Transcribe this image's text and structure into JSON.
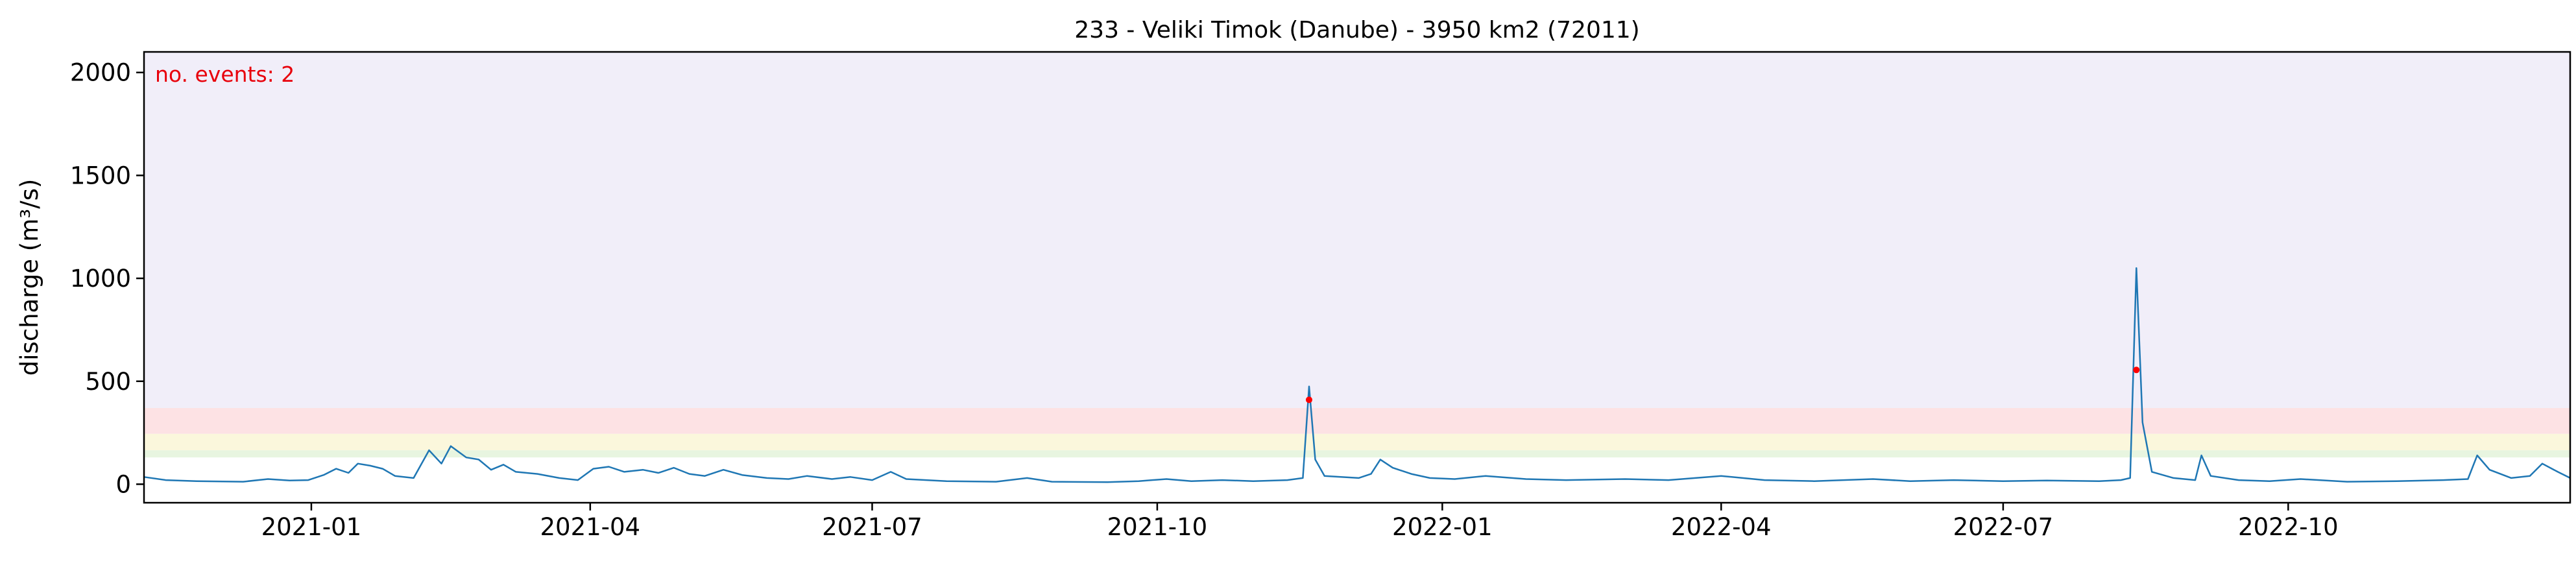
{
  "chart_data": {
    "type": "line",
    "title": "233 - Veliki Timok (Danube) - 3950 km2 (72011)",
    "xlabel": "",
    "ylabel": "discharge (m³/s)",
    "ylim": [
      -90,
      2100
    ],
    "xlim": [
      "2020-11-08",
      "2022-12-31"
    ],
    "yticks": [
      0,
      500,
      1000,
      1500,
      2000
    ],
    "xticks": [
      "2021-01",
      "2021-04",
      "2021-07",
      "2021-10",
      "2022-01",
      "2022-04",
      "2022-07",
      "2022-10"
    ],
    "grid": false,
    "annotation": "no. events: 2",
    "bands": [
      {
        "from": 130,
        "to": 165,
        "color": "#e8f5e0"
      },
      {
        "from": 165,
        "to": 245,
        "color": "#fbf7dc"
      },
      {
        "from": 245,
        "to": 370,
        "color": "#fde2e4"
      },
      {
        "from": 370,
        "to": 2100,
        "color": "#f1eef9"
      }
    ],
    "series": [
      {
        "color": "#1f77b4",
        "points": [
          [
            "2020-11-08",
            35
          ],
          [
            "2020-11-15",
            20
          ],
          [
            "2020-11-25",
            15
          ],
          [
            "2020-12-10",
            12
          ],
          [
            "2020-12-18",
            25
          ],
          [
            "2020-12-25",
            18
          ],
          [
            "2020-12-31",
            20
          ],
          [
            "2021-01-05",
            45
          ],
          [
            "2021-01-09",
            75
          ],
          [
            "2021-01-13",
            55
          ],
          [
            "2021-01-16",
            100
          ],
          [
            "2021-01-20",
            90
          ],
          [
            "2021-01-24",
            75
          ],
          [
            "2021-01-28",
            40
          ],
          [
            "2021-02-03",
            30
          ],
          [
            "2021-02-08",
            165
          ],
          [
            "2021-02-12",
            100
          ],
          [
            "2021-02-15",
            185
          ],
          [
            "2021-02-20",
            130
          ],
          [
            "2021-02-24",
            120
          ],
          [
            "2021-02-28",
            70
          ],
          [
            "2021-03-04",
            95
          ],
          [
            "2021-03-08",
            60
          ],
          [
            "2021-03-15",
            50
          ],
          [
            "2021-03-22",
            30
          ],
          [
            "2021-03-28",
            20
          ],
          [
            "2021-04-02",
            75
          ],
          [
            "2021-04-07",
            85
          ],
          [
            "2021-04-12",
            60
          ],
          [
            "2021-04-18",
            70
          ],
          [
            "2021-04-23",
            55
          ],
          [
            "2021-04-28",
            80
          ],
          [
            "2021-05-03",
            50
          ],
          [
            "2021-05-08",
            40
          ],
          [
            "2021-05-14",
            70
          ],
          [
            "2021-05-20",
            45
          ],
          [
            "2021-05-28",
            30
          ],
          [
            "2021-06-04",
            25
          ],
          [
            "2021-06-10",
            40
          ],
          [
            "2021-06-18",
            25
          ],
          [
            "2021-06-24",
            35
          ],
          [
            "2021-07-01",
            20
          ],
          [
            "2021-07-07",
            60
          ],
          [
            "2021-07-12",
            25
          ],
          [
            "2021-07-25",
            15
          ],
          [
            "2021-08-10",
            12
          ],
          [
            "2021-08-20",
            30
          ],
          [
            "2021-08-28",
            12
          ],
          [
            "2021-09-15",
            10
          ],
          [
            "2021-09-25",
            15
          ],
          [
            "2021-10-04",
            25
          ],
          [
            "2021-10-12",
            15
          ],
          [
            "2021-10-22",
            20
          ],
          [
            "2021-11-01",
            15
          ],
          [
            "2021-11-12",
            20
          ],
          [
            "2021-11-17",
            30
          ],
          [
            "2021-11-19",
            475
          ],
          [
            "2021-11-21",
            120
          ],
          [
            "2021-11-24",
            40
          ],
          [
            "2021-12-05",
            30
          ],
          [
            "2021-12-09",
            50
          ],
          [
            "2021-12-12",
            120
          ],
          [
            "2021-12-16",
            80
          ],
          [
            "2021-12-22",
            50
          ],
          [
            "2021-12-28",
            30
          ],
          [
            "2022-01-05",
            25
          ],
          [
            "2022-01-15",
            40
          ],
          [
            "2022-01-28",
            25
          ],
          [
            "2022-02-10",
            20
          ],
          [
            "2022-03-01",
            25
          ],
          [
            "2022-03-15",
            20
          ],
          [
            "2022-04-01",
            40
          ],
          [
            "2022-04-15",
            20
          ],
          [
            "2022-05-01",
            15
          ],
          [
            "2022-05-20",
            25
          ],
          [
            "2022-06-01",
            15
          ],
          [
            "2022-06-15",
            20
          ],
          [
            "2022-07-01",
            15
          ],
          [
            "2022-07-15",
            18
          ],
          [
            "2022-08-01",
            15
          ],
          [
            "2022-08-08",
            20
          ],
          [
            "2022-08-11",
            30
          ],
          [
            "2022-08-13",
            1050
          ],
          [
            "2022-08-15",
            300
          ],
          [
            "2022-08-18",
            60
          ],
          [
            "2022-08-25",
            30
          ],
          [
            "2022-09-01",
            20
          ],
          [
            "2022-09-03",
            140
          ],
          [
            "2022-09-06",
            40
          ],
          [
            "2022-09-15",
            20
          ],
          [
            "2022-09-25",
            15
          ],
          [
            "2022-10-05",
            25
          ],
          [
            "2022-10-20",
            12
          ],
          [
            "2022-11-05",
            15
          ],
          [
            "2022-11-20",
            20
          ],
          [
            "2022-11-28",
            25
          ],
          [
            "2022-12-01",
            140
          ],
          [
            "2022-12-05",
            70
          ],
          [
            "2022-12-12",
            30
          ],
          [
            "2022-12-18",
            40
          ],
          [
            "2022-12-22",
            100
          ],
          [
            "2022-12-27",
            60
          ],
          [
            "2022-12-31",
            30
          ]
        ]
      }
    ],
    "events": [
      {
        "date": "2021-11-19",
        "value": 410,
        "color": "#ff0000"
      },
      {
        "date": "2022-08-13",
        "value": 555,
        "color": "#ff0000"
      }
    ]
  }
}
